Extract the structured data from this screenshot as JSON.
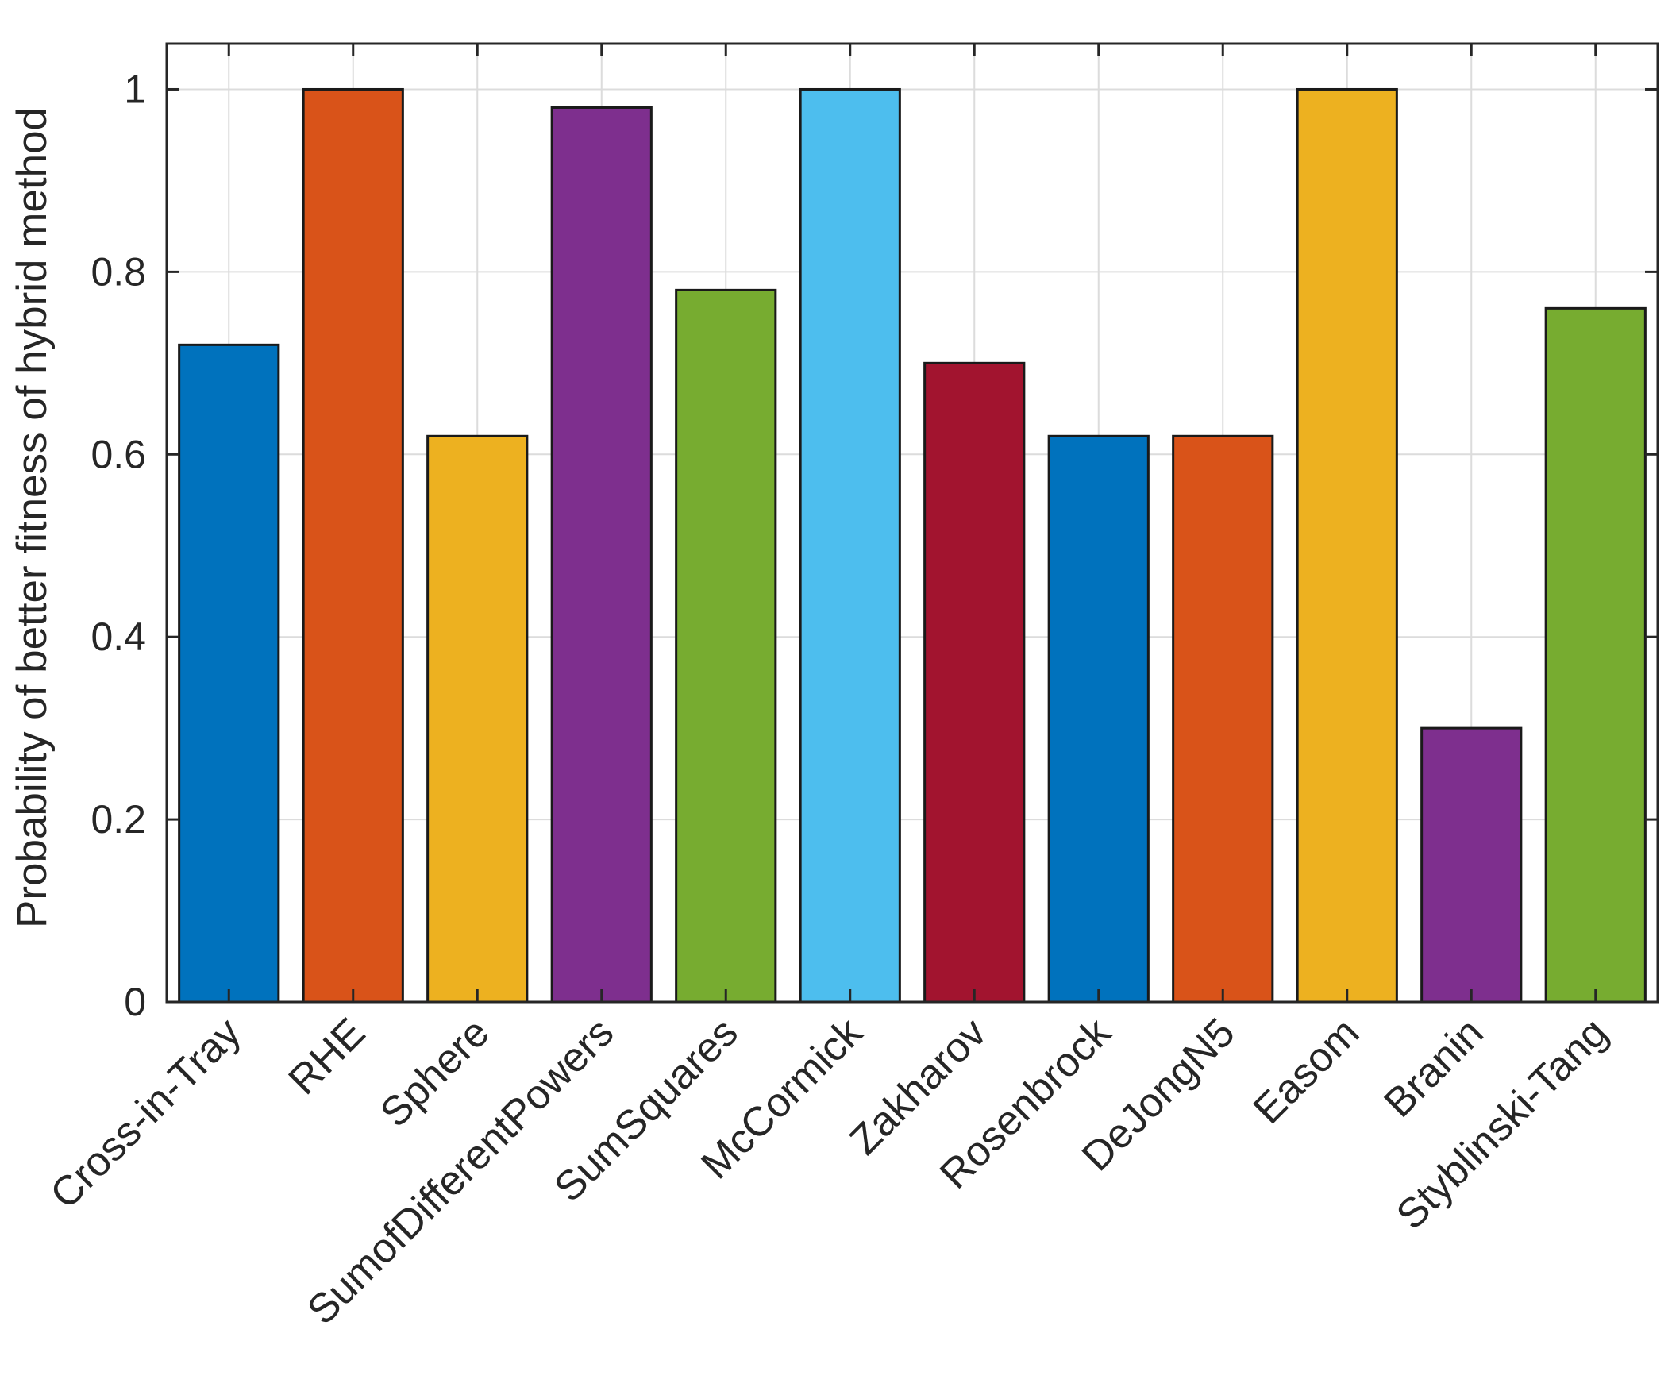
{
  "chart_data": {
    "type": "bar",
    "title": "",
    "xlabel": "",
    "ylabel": "Probability of better fitness of hybrid method",
    "ylim": [
      0,
      1.05
    ],
    "yticks": [
      0,
      0.2,
      0.4,
      0.6,
      0.8,
      1
    ],
    "ytick_labels": [
      "0",
      "0.2",
      "0.4",
      "0.6",
      "0.8",
      "1"
    ],
    "grid": true,
    "categories": [
      "Cross-in-Tray",
      "RHE",
      "Sphere",
      "SumofDifferentPowers",
      "SumSquares",
      "McCormick",
      "Zakharov",
      "Rosenbrock",
      "DeJongN5",
      "Easom",
      "Branin",
      "Styblinski-Tang"
    ],
    "values": [
      0.72,
      1.0,
      0.62,
      0.98,
      0.78,
      1.0,
      0.7,
      0.62,
      0.62,
      1.0,
      0.3,
      0.76
    ],
    "colors": [
      "#0072BD",
      "#D95319",
      "#EDB120",
      "#7E2F8E",
      "#77AC30",
      "#4DBEEE",
      "#A2142F",
      "#0072BD",
      "#D95319",
      "#EDB120",
      "#7E2F8E",
      "#77AC30"
    ]
  }
}
